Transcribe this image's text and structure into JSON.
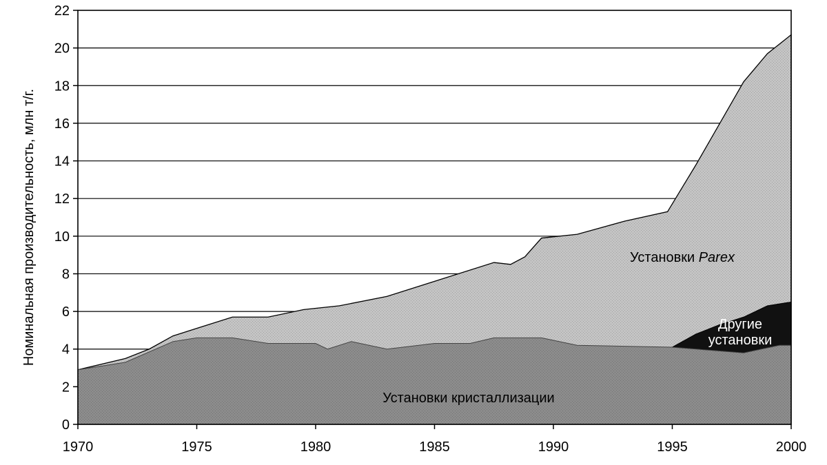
{
  "chart_data": {
    "type": "area",
    "stacked": true,
    "title": "",
    "xlabel": "",
    "ylabel": "Номинальная производительность, млн т/г.",
    "xlim": [
      1970,
      2000
    ],
    "ylim": [
      0,
      22
    ],
    "x_ticks": [
      "1970",
      "1975",
      "1980",
      "1985",
      "1990",
      "1995",
      "2000"
    ],
    "y_ticks": [
      "0",
      "2",
      "4",
      "6",
      "8",
      "10",
      "12",
      "14",
      "16",
      "18",
      "20",
      "22"
    ],
    "grid": "horizontal",
    "series": [
      {
        "name": "Установки кристаллизации",
        "color": "#8c8c8c",
        "points": [
          [
            1970,
            2.9
          ],
          [
            1972,
            3.3
          ],
          [
            1974,
            4.4
          ],
          [
            1975,
            4.6
          ],
          [
            1976.5,
            4.6
          ],
          [
            1978,
            4.3
          ],
          [
            1980,
            4.3
          ],
          [
            1980.5,
            4.0
          ],
          [
            1981.5,
            4.4
          ],
          [
            1983,
            4.0
          ],
          [
            1985,
            4.3
          ],
          [
            1986.5,
            4.3
          ],
          [
            1987.5,
            4.6
          ],
          [
            1989.5,
            4.6
          ],
          [
            1991,
            4.2
          ],
          [
            1995,
            4.1
          ],
          [
            1998,
            3.8
          ],
          [
            1999.5,
            4.2
          ],
          [
            2000,
            4.2
          ]
        ]
      },
      {
        "name": "Другие установки",
        "color": "#111111",
        "upper": [
          [
            1995,
            4.1
          ],
          [
            1996,
            4.8
          ],
          [
            1997,
            5.3
          ],
          [
            1998,
            5.7
          ],
          [
            1999,
            6.3
          ],
          [
            2000,
            6.5
          ]
        ]
      },
      {
        "name": "Установки Parex",
        "color": "#c4c4c4",
        "upper": [
          [
            1970,
            2.9
          ],
          [
            1972,
            3.5
          ],
          [
            1973,
            4.0
          ],
          [
            1974,
            4.7
          ],
          [
            1975,
            5.1
          ],
          [
            1976.5,
            5.7
          ],
          [
            1978,
            5.7
          ],
          [
            1979.5,
            6.1
          ],
          [
            1981,
            6.3
          ],
          [
            1983,
            6.8
          ],
          [
            1985,
            7.6
          ],
          [
            1987.5,
            8.6
          ],
          [
            1988.2,
            8.5
          ],
          [
            1988.8,
            8.9
          ],
          [
            1989.5,
            9.9
          ],
          [
            1991,
            10.1
          ],
          [
            1993,
            10.8
          ],
          [
            1994.8,
            11.3
          ],
          [
            1996,
            13.8
          ],
          [
            1997,
            16.0
          ],
          [
            1998,
            18.2
          ],
          [
            1999,
            19.7
          ],
          [
            2000,
            20.7
          ]
        ]
      }
    ],
    "labels": {
      "crystallization": "Установки кристаллизации",
      "parex_prefix": "Установки ",
      "parex_italic": "Parex",
      "other_line1": "Другие",
      "other_line2": "установки"
    }
  }
}
